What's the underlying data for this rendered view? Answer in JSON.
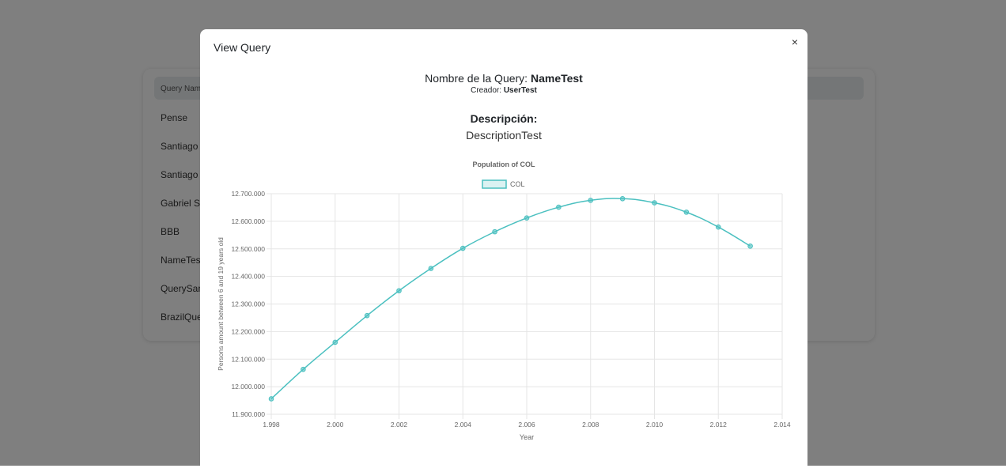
{
  "background": {
    "table_header": "Query Name",
    "rows": [
      "Pense",
      "Santiago",
      "Santiago",
      "Gabriel Sua",
      "BBB",
      "NameTest",
      "QuerySanti",
      "BrazilQuery"
    ]
  },
  "modal": {
    "title": "View Query",
    "close_icon": "close-icon",
    "close_glyph": "×",
    "name_label": "Nombre de la Query:",
    "name_value": "NameTest",
    "creator_label": "Creador:",
    "creator_value": "UserTest",
    "description_label": "Descripción:",
    "description_value": "DescriptionTest"
  },
  "chart_data": {
    "type": "line",
    "title": "Population of COL",
    "xlabel": "Year",
    "ylabel": "Persons amount between 6 and 19 years old",
    "xlim": [
      1998,
      2014
    ],
    "ylim": [
      11900000,
      12700000
    ],
    "x_ticks": [
      "1.998",
      "2.000",
      "2.002",
      "2.004",
      "2.006",
      "2.008",
      "2.010",
      "2.012",
      "2.014"
    ],
    "y_ticks": [
      "11.900.000",
      "12.000.000",
      "12.100.000",
      "12.200.000",
      "12.300.000",
      "12.400.000",
      "12.500.000",
      "12.600.000",
      "12.700.000"
    ],
    "legend_position": "top",
    "grid": true,
    "color": "#4bc0c0",
    "series": [
      {
        "name": "COL",
        "x": [
          1998,
          1999,
          2000,
          2001,
          2002,
          2003,
          2004,
          2005,
          2006,
          2007,
          2008,
          2009,
          2010,
          2011,
          2012,
          2013
        ],
        "values": [
          11956000,
          12063000,
          12161000,
          12258000,
          12348000,
          12429000,
          12502000,
          12562000,
          12612000,
          12651000,
          12676000,
          12682000,
          12667000,
          12633000,
          12579000,
          12510000
        ]
      }
    ]
  }
}
